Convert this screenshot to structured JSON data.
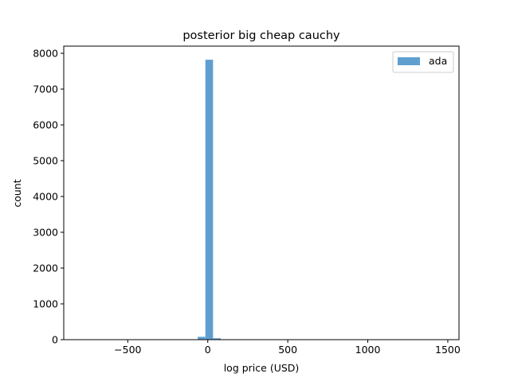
{
  "chart_data": {
    "type": "bar",
    "title": "posterior big cheap cauchy",
    "xlabel": "log price (USD)",
    "ylabel": "count",
    "xlim": [
      -900,
      1570
    ],
    "ylim": [
      0,
      8200
    ],
    "xticks": [
      -500,
      0,
      500,
      1000,
      1500
    ],
    "xtick_labels": [
      "−500",
      "0",
      "500",
      "1000",
      "1500"
    ],
    "yticks": [
      0,
      1000,
      2000,
      3000,
      4000,
      5000,
      6000,
      7000,
      8000
    ],
    "ytick_labels": [
      "0",
      "1000",
      "2000",
      "3000",
      "4000",
      "5000",
      "6000",
      "7000",
      "8000"
    ],
    "grid": false,
    "legend": "top-right",
    "series": [
      {
        "name": "ada",
        "color": "#5f9fd0",
        "bins": [
          {
            "x0": -63,
            "x1": -15,
            "count": 80
          },
          {
            "x0": -15,
            "x1": 33,
            "count": 7820
          },
          {
            "x0": 33,
            "x1": 81,
            "count": 40
          }
        ]
      }
    ]
  }
}
